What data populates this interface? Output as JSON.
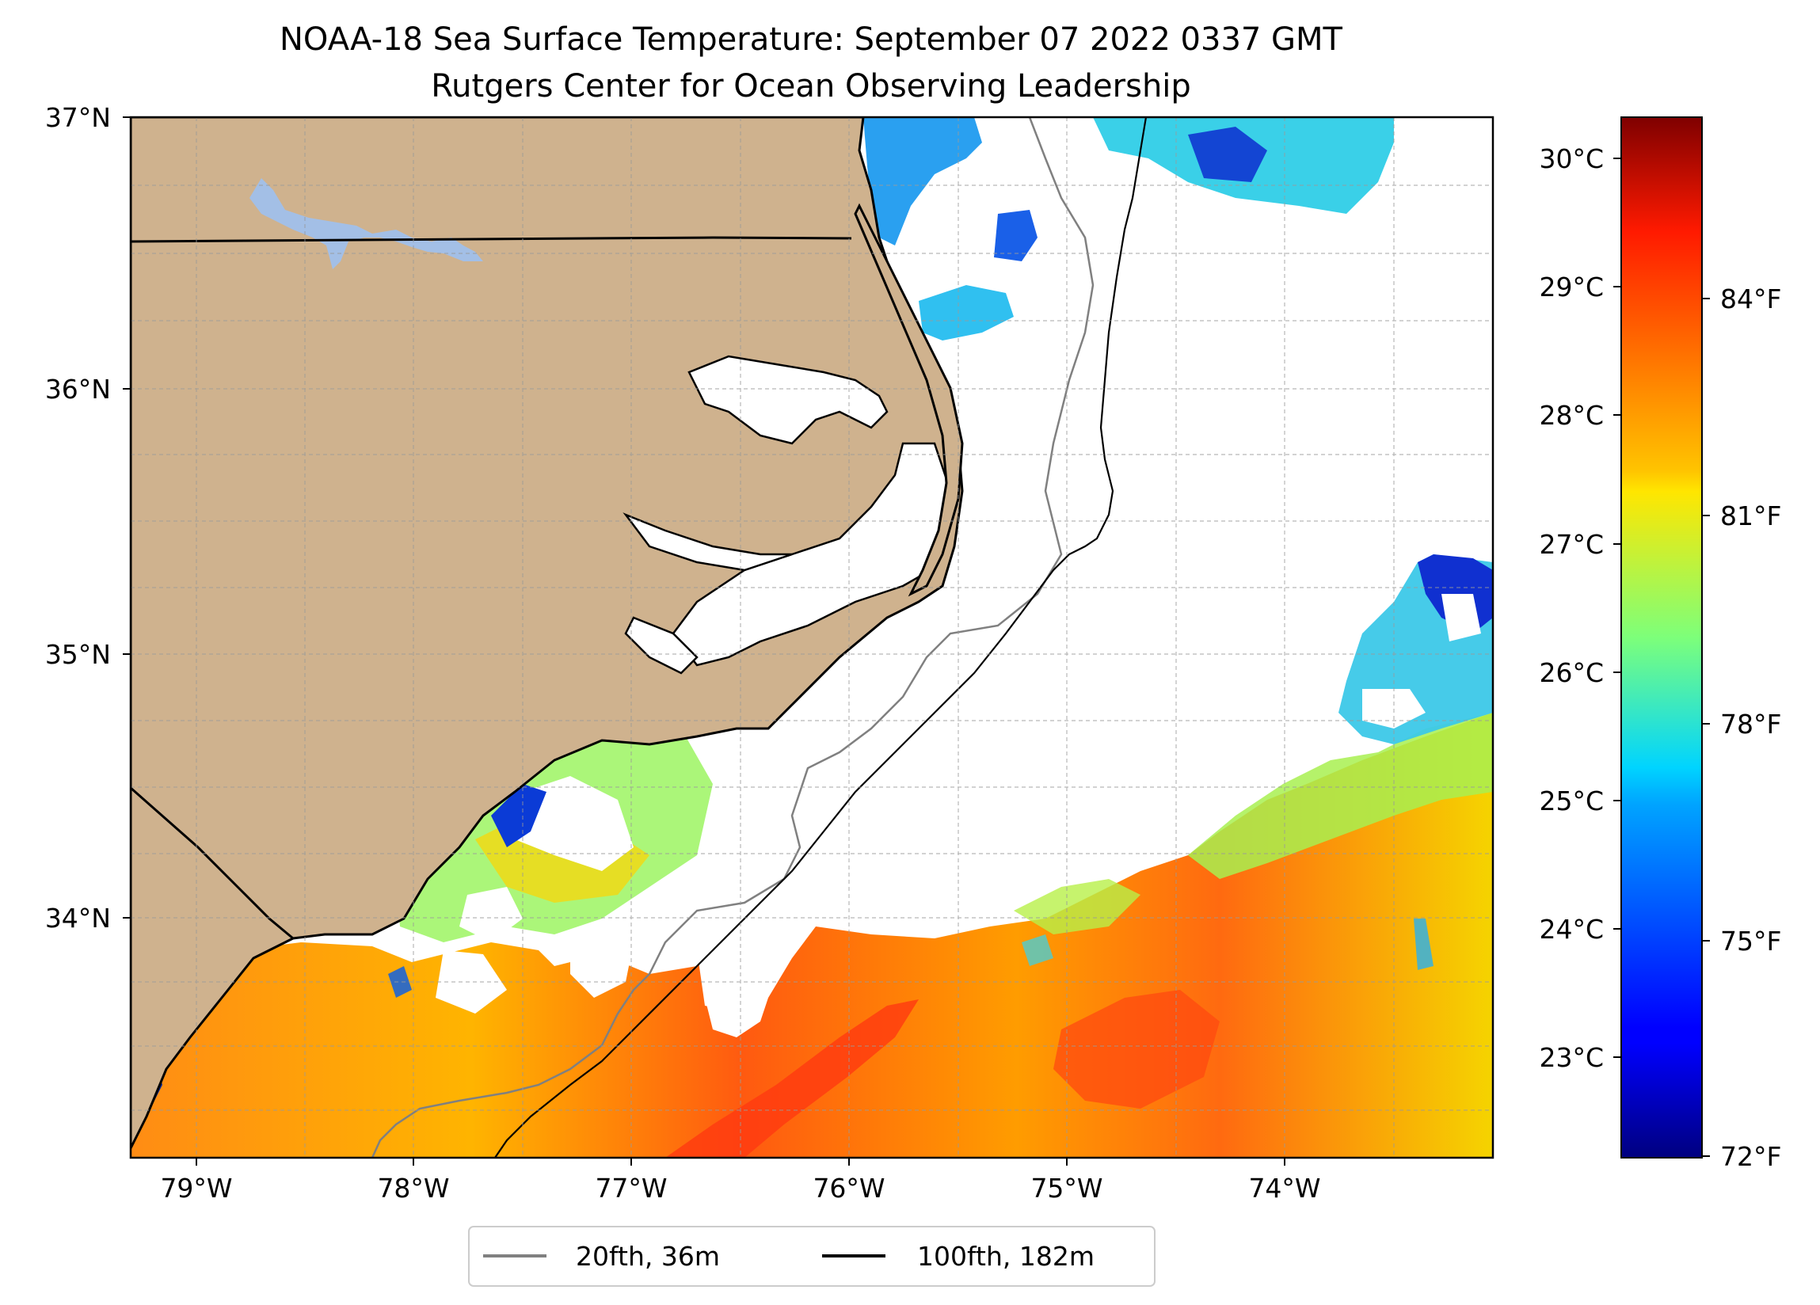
{
  "title": {
    "line1": "NOAA-18 Sea Surface Temperature: September 07 2022 0337 GMT",
    "line2": "Rutgers Center for Ocean Observing Leadership"
  },
  "map": {
    "lon_range": [
      -79.3,
      -73.05
    ],
    "lat_range": [
      33.1,
      37.0
    ],
    "lon_ticks": [
      "79°W",
      "78°W",
      "77°W",
      "76°W",
      "75°W",
      "74°W"
    ],
    "lat_ticks": [
      "37°N",
      "36°N",
      "35°N",
      "34°N"
    ],
    "grid": true,
    "colors": {
      "land": "#cfb28e",
      "lake": "#a3bfe6",
      "ocean_no_data": "#ffffff",
      "isobath_20fth": "#808080",
      "isobath_100fth": "#000000"
    }
  },
  "colorbar": {
    "colormap": "jet",
    "celsius_ticks": [
      "30°C",
      "29°C",
      "28°C",
      "27°C",
      "26°C",
      "25°C",
      "24°C",
      "23°C"
    ],
    "fahrenheit_ticks": [
      "84°F",
      "81°F",
      "78°F",
      "75°F",
      "72°F"
    ],
    "range_celsius": [
      22.2,
      30.3
    ]
  },
  "legend": {
    "position": "bottom-center",
    "items": [
      {
        "label": "20fth, 36m",
        "color": "#808080"
      },
      {
        "label": "100fth, 182m",
        "color": "#000000"
      }
    ]
  }
}
